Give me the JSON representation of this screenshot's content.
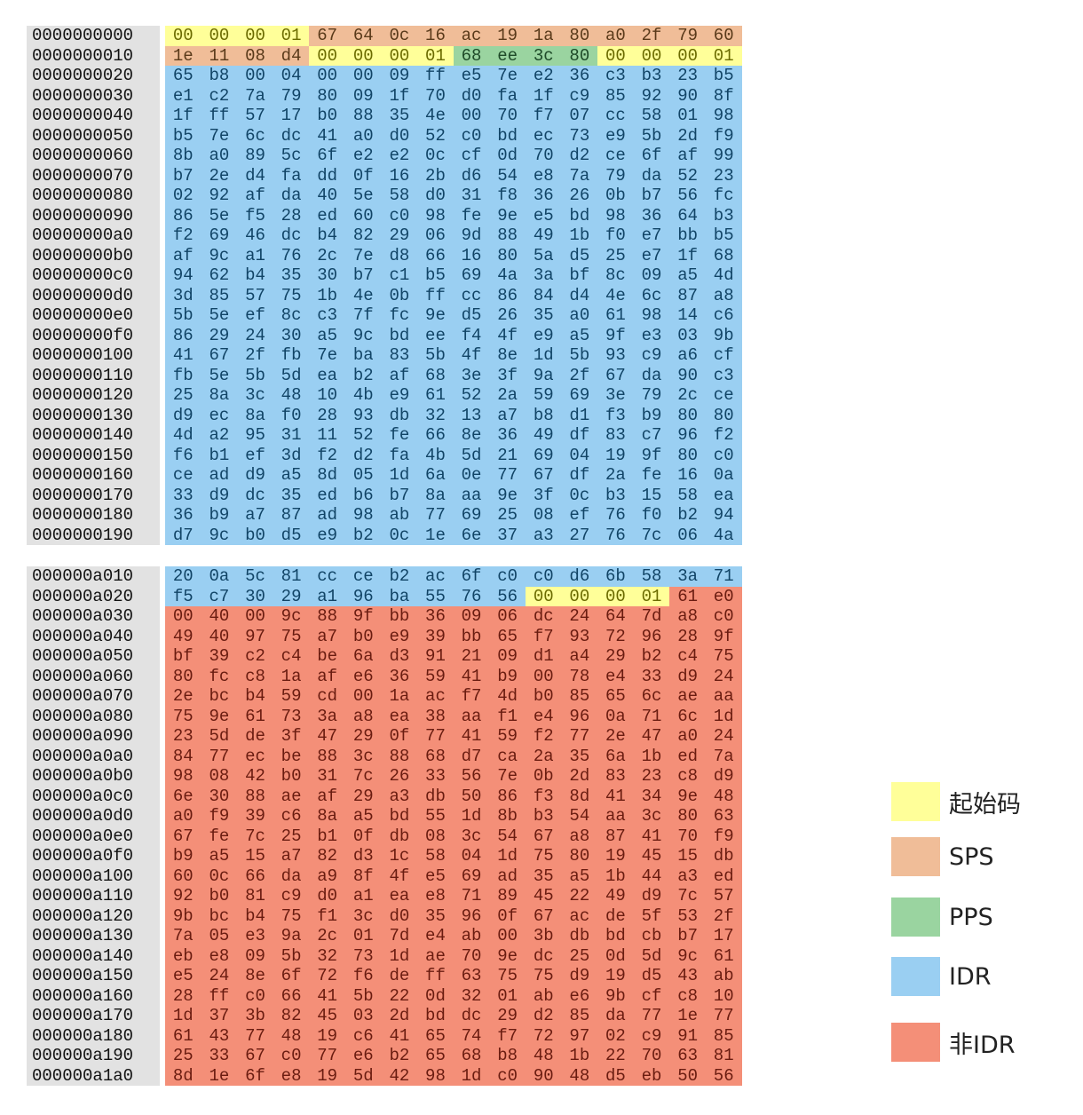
{
  "legend": [
    {
      "key": "start",
      "label": "起始码",
      "color": "#ffff99"
    },
    {
      "key": "sps",
      "label": "SPS",
      "color": "#f0bd98"
    },
    {
      "key": "pps",
      "label": "PPS",
      "color": "#9ad4a0"
    },
    {
      "key": "idr",
      "label": "IDR",
      "color": "#9acff2"
    },
    {
      "key": "nonidr",
      "label": "非IDR",
      "color": "#f48f78"
    }
  ],
  "text_colors": {
    "start": "#6b6b00",
    "sps": "#5a3a1a",
    "pps": "#1e4a28",
    "idr": "#114466",
    "nonidr": "#6a1c10"
  },
  "dumps": [
    {
      "id": "dump1",
      "rows": [
        {
          "offset": "0000000000",
          "bytes": "00 00 00 01 67 64 0c 16 ac 19 1a 80 a0 2f 79 60",
          "types": "SSSSPPPPPPPPPPPP"
        },
        {
          "offset": "0000000010",
          "bytes": "1e 11 08 d4 00 00 00 01 68 ee 3c 80 00 00 00 01",
          "types": "PPPPSSSSQQQQSSSS"
        },
        {
          "offset": "0000000020",
          "bytes": "65 b8 00 04 00 00 09 ff e5 7e e2 36 c3 b3 23 b5",
          "types": "IIIIIIIIIIIIIIII"
        },
        {
          "offset": "0000000030",
          "bytes": "e1 c2 7a 79 80 09 1f 70 d0 fa 1f c9 85 92 90 8f",
          "types": "IIIIIIIIIIIIIIII"
        },
        {
          "offset": "0000000040",
          "bytes": "1f ff 57 17 b0 88 35 4e 00 70 f7 07 cc 58 01 98",
          "types": "IIIIIIIIIIIIIIII"
        },
        {
          "offset": "0000000050",
          "bytes": "b5 7e 6c dc 41 a0 d0 52 c0 bd ec 73 e9 5b 2d f9",
          "types": "IIIIIIIIIIIIIIII"
        },
        {
          "offset": "0000000060",
          "bytes": "8b a0 89 5c 6f e2 e2 0c cf 0d 70 d2 ce 6f af 99",
          "types": "IIIIIIIIIIIIIIII"
        },
        {
          "offset": "0000000070",
          "bytes": "b7 2e d4 fa dd 0f 16 2b d6 54 e8 7a 79 da 52 23",
          "types": "IIIIIIIIIIIIIIII"
        },
        {
          "offset": "0000000080",
          "bytes": "02 92 af da 40 5e 58 d0 31 f8 36 26 0b b7 56 fc",
          "types": "IIIIIIIIIIIIIIII"
        },
        {
          "offset": "0000000090",
          "bytes": "86 5e f5 28 ed 60 c0 98 fe 9e e5 bd 98 36 64 b3",
          "types": "IIIIIIIIIIIIIIII"
        },
        {
          "offset": "00000000a0",
          "bytes": "f2 69 46 dc b4 82 29 06 9d 88 49 1b f0 e7 bb b5",
          "types": "IIIIIIIIIIIIIIII"
        },
        {
          "offset": "00000000b0",
          "bytes": "af 9c a1 76 2c 7e d8 66 16 80 5a d5 25 e7 1f 68",
          "types": "IIIIIIIIIIIIIIII"
        },
        {
          "offset": "00000000c0",
          "bytes": "94 62 b4 35 30 b7 c1 b5 69 4a 3a bf 8c 09 a5 4d",
          "types": "IIIIIIIIIIIIIIII"
        },
        {
          "offset": "00000000d0",
          "bytes": "3d 85 57 75 1b 4e 0b ff cc 86 84 d4 4e 6c 87 a8",
          "types": "IIIIIIIIIIIIIIII"
        },
        {
          "offset": "00000000e0",
          "bytes": "5b 5e ef 8c c3 7f fc 9e d5 26 35 a0 61 98 14 c6",
          "types": "IIIIIIIIIIIIIIII"
        },
        {
          "offset": "00000000f0",
          "bytes": "86 29 24 30 a5 9c bd ee f4 4f e9 a5 9f e3 03 9b",
          "types": "IIIIIIIIIIIIIIII"
        },
        {
          "offset": "0000000100",
          "bytes": "41 67 2f fb 7e ba 83 5b 4f 8e 1d 5b 93 c9 a6 cf",
          "types": "IIIIIIIIIIIIIIII"
        },
        {
          "offset": "0000000110",
          "bytes": "fb 5e 5b 5d ea b2 af 68 3e 3f 9a 2f 67 da 90 c3",
          "types": "IIIIIIIIIIIIIIII"
        },
        {
          "offset": "0000000120",
          "bytes": "25 8a 3c 48 10 4b e9 61 52 2a 59 69 3e 79 2c ce",
          "types": "IIIIIIIIIIIIIIII"
        },
        {
          "offset": "0000000130",
          "bytes": "d9 ec 8a f0 28 93 db 32 13 a7 b8 d1 f3 b9 80 80",
          "types": "IIIIIIIIIIIIIIII"
        },
        {
          "offset": "0000000140",
          "bytes": "4d a2 95 31 11 52 fe 66 8e 36 49 df 83 c7 96 f2",
          "types": "IIIIIIIIIIIIIIII"
        },
        {
          "offset": "0000000150",
          "bytes": "f6 b1 ef 3d f2 d2 fa 4b 5d 21 69 04 19 9f 80 c0",
          "types": "IIIIIIIIIIIIIIII"
        },
        {
          "offset": "0000000160",
          "bytes": "ce ad d9 a5 8d 05 1d 6a 0e 77 67 df 2a fe 16 0a",
          "types": "IIIIIIIIIIIIIIII"
        },
        {
          "offset": "0000000170",
          "bytes": "33 d9 dc 35 ed b6 b7 8a aa 9e 3f 0c b3 15 58 ea",
          "types": "IIIIIIIIIIIIIIII"
        },
        {
          "offset": "0000000180",
          "bytes": "36 b9 a7 87 ad 98 ab 77 69 25 08 ef 76 f0 b2 94",
          "types": "IIIIIIIIIIIIIIII"
        },
        {
          "offset": "0000000190",
          "bytes": "d7 9c b0 d5 e9 b2 0c 1e 6e 37 a3 27 76 7c 06 4a",
          "types": "IIIIIIIIIIIIIIII"
        }
      ]
    },
    {
      "id": "dump2",
      "rows": [
        {
          "offset": "000000a010",
          "bytes": "20 0a 5c 81 cc ce b2 ac 6f c0 c0 d6 6b 58 3a 71",
          "types": "IIIIIIIIIIIIIIII"
        },
        {
          "offset": "000000a020",
          "bytes": "f5 c7 30 29 a1 96 ba 55 76 56 00 00 00 01 61 e0",
          "types": "IIIIIIIIIISSSSNN"
        },
        {
          "offset": "000000a030",
          "bytes": "00 40 00 9c 88 9f bb 36 09 06 dc 24 64 7d a8 c0",
          "types": "NNNNNNNNNNNNNNNN"
        },
        {
          "offset": "000000a040",
          "bytes": "49 40 97 75 a7 b0 e9 39 bb 65 f7 93 72 96 28 9f",
          "types": "NNNNNNNNNNNNNNNN"
        },
        {
          "offset": "000000a050",
          "bytes": "bf 39 c2 c4 be 6a d3 91 21 09 d1 a4 29 b2 c4 75",
          "types": "NNNNNNNNNNNNNNNN"
        },
        {
          "offset": "000000a060",
          "bytes": "80 fc c8 1a af e6 36 59 41 b9 00 78 e4 33 d9 24",
          "types": "NNNNNNNNNNNNNNNN"
        },
        {
          "offset": "000000a070",
          "bytes": "2e bc b4 59 cd 00 1a ac f7 4d b0 85 65 6c ae aa",
          "types": "NNNNNNNNNNNNNNNN"
        },
        {
          "offset": "000000a080",
          "bytes": "75 9e 61 73 3a a8 ea 38 aa f1 e4 96 0a 71 6c 1d",
          "types": "NNNNNNNNNNNNNNNN"
        },
        {
          "offset": "000000a090",
          "bytes": "23 5d de 3f 47 29 0f 77 41 59 f2 77 2e 47 a0 24",
          "types": "NNNNNNNNNNNNNNNN"
        },
        {
          "offset": "000000a0a0",
          "bytes": "84 77 ec be 88 3c 88 68 d7 ca 2a 35 6a 1b ed 7a",
          "types": "NNNNNNNNNNNNNNNN"
        },
        {
          "offset": "000000a0b0",
          "bytes": "98 08 42 b0 31 7c 26 33 56 7e 0b 2d 83 23 c8 d9",
          "types": "NNNNNNNNNNNNNNNN"
        },
        {
          "offset": "000000a0c0",
          "bytes": "6e 30 88 ae af 29 a3 db 50 86 f3 8d 41 34 9e 48",
          "types": "NNNNNNNNNNNNNNNN"
        },
        {
          "offset": "000000a0d0",
          "bytes": "a0 f9 39 c6 8a a5 bd 55 1d 8b b3 54 aa 3c 80 63",
          "types": "NNNNNNNNNNNNNNNN"
        },
        {
          "offset": "000000a0e0",
          "bytes": "67 fe 7c 25 b1 0f db 08 3c 54 67 a8 87 41 70 f9",
          "types": "NNNNNNNNNNNNNNNN"
        },
        {
          "offset": "000000a0f0",
          "bytes": "b9 a5 15 a7 82 d3 1c 58 04 1d 75 80 19 45 15 db",
          "types": "NNNNNNNNNNNNNNNN"
        },
        {
          "offset": "000000a100",
          "bytes": "60 0c 66 da a9 8f 4f e5 69 ad 35 a5 1b 44 a3 ed",
          "types": "NNNNNNNNNNNNNNNN"
        },
        {
          "offset": "000000a110",
          "bytes": "92 b0 81 c9 d0 a1 ea e8 71 89 45 22 49 d9 7c 57",
          "types": "NNNNNNNNNNNNNNNN"
        },
        {
          "offset": "000000a120",
          "bytes": "9b bc b4 75 f1 3c d0 35 96 0f 67 ac de 5f 53 2f",
          "types": "NNNNNNNNNNNNNNNN"
        },
        {
          "offset": "000000a130",
          "bytes": "7a 05 e3 9a 2c 01 7d e4 ab 00 3b db bd cb b7 17",
          "types": "NNNNNNNNNNNNNNNN"
        },
        {
          "offset": "000000a140",
          "bytes": "eb e8 09 5b 32 73 1d ae 70 9e dc 25 0d 5d 9c 61",
          "types": "NNNNNNNNNNNNNNNN"
        },
        {
          "offset": "000000a150",
          "bytes": "e5 24 8e 6f 72 f6 de ff 63 75 75 d9 19 d5 43 ab",
          "types": "NNNNNNNNNNNNNNNN"
        },
        {
          "offset": "000000a160",
          "bytes": "28 ff c0 66 41 5b 22 0d 32 01 ab e6 9b cf c8 10",
          "types": "NNNNNNNNNNNNNNNN"
        },
        {
          "offset": "000000a170",
          "bytes": "1d 37 3b 82 45 03 2d bd dc 29 d2 85 da 77 1e 77",
          "types": "NNNNNNNNNNNNNNNN"
        },
        {
          "offset": "000000a180",
          "bytes": "61 43 77 48 19 c6 41 65 74 f7 72 97 02 c9 91 85",
          "types": "NNNNNNNNNNNNNNNN"
        },
        {
          "offset": "000000a190",
          "bytes": "25 33 67 c0 77 e6 b2 65 68 b8 48 1b 22 70 63 81",
          "types": "NNNNNNNNNNNNNNNN"
        },
        {
          "offset": "000000a1a0",
          "bytes": "8d 1e 6f e8 19 5d 42 98 1d c0 90 48 d5 eb 50 56",
          "types": "NNNNNNNNNNNNNNNN"
        }
      ]
    }
  ]
}
